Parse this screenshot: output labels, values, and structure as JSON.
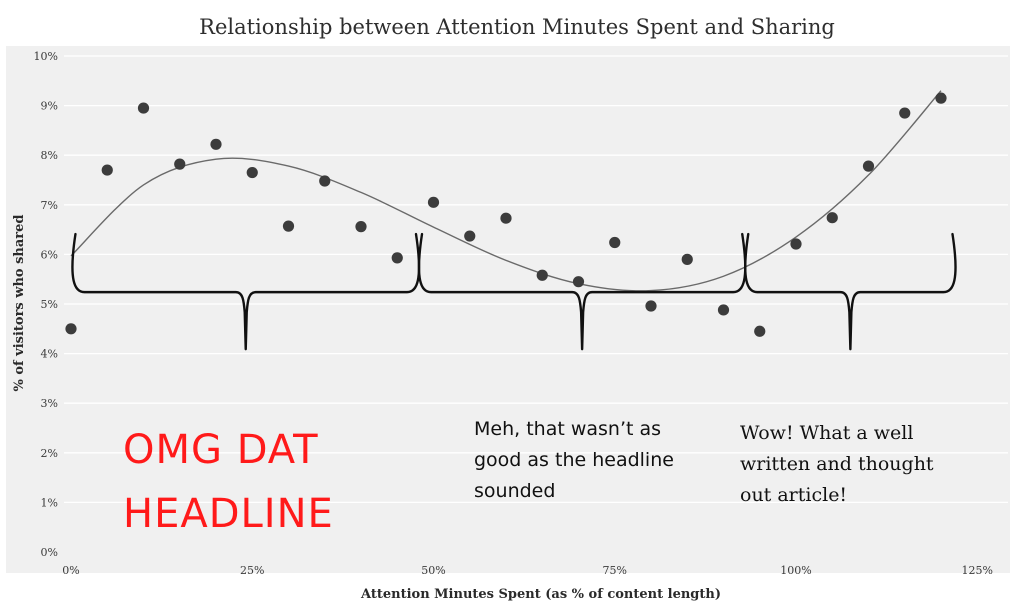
{
  "chart_data": {
    "type": "scatter",
    "title": "Relationship between Attention Minutes Spent and Sharing",
    "xlabel": "Attention Minutes Spent (as % of content length)",
    "ylabel": "% of visitors who shared",
    "xlim": [
      0,
      125
    ],
    "ylim": [
      0,
      10
    ],
    "x_ticks": [
      "0%",
      "25%",
      "50%",
      "75%",
      "100%",
      "125%"
    ],
    "y_ticks": [
      "0%",
      "1%",
      "2%",
      "3%",
      "4%",
      "5%",
      "6%",
      "7%",
      "8%",
      "9%",
      "10%"
    ],
    "grid": "horizontal",
    "points": [
      {
        "x": 0,
        "y": 4.5
      },
      {
        "x": 5,
        "y": 7.7
      },
      {
        "x": 10,
        "y": 8.95
      },
      {
        "x": 15,
        "y": 7.82
      },
      {
        "x": 20,
        "y": 8.22
      },
      {
        "x": 25,
        "y": 7.65
      },
      {
        "x": 30,
        "y": 6.57
      },
      {
        "x": 35,
        "y": 7.48
      },
      {
        "x": 40,
        "y": 6.56
      },
      {
        "x": 45,
        "y": 5.93
      },
      {
        "x": 50,
        "y": 7.05
      },
      {
        "x": 55,
        "y": 6.37
      },
      {
        "x": 60,
        "y": 6.73
      },
      {
        "x": 65,
        "y": 5.58
      },
      {
        "x": 70,
        "y": 5.45
      },
      {
        "x": 75,
        "y": 6.24
      },
      {
        "x": 80,
        "y": 4.96
      },
      {
        "x": 85,
        "y": 5.9
      },
      {
        "x": 90,
        "y": 4.88
      },
      {
        "x": 95,
        "y": 4.45
      },
      {
        "x": 100,
        "y": 6.21
      },
      {
        "x": 105,
        "y": 6.74
      },
      {
        "x": 110,
        "y": 7.78
      },
      {
        "x": 115,
        "y": 8.85
      },
      {
        "x": 120,
        "y": 9.15
      }
    ],
    "trendline": {
      "type": "cubic",
      "points": [
        {
          "x": 0,
          "y": 5.97
        },
        {
          "x": 10,
          "y": 7.4
        },
        {
          "x": 20,
          "y": 7.92
        },
        {
          "x": 30,
          "y": 7.78
        },
        {
          "x": 40,
          "y": 7.25
        },
        {
          "x": 50,
          "y": 6.55
        },
        {
          "x": 60,
          "y": 5.88
        },
        {
          "x": 70,
          "y": 5.41
        },
        {
          "x": 80,
          "y": 5.27
        },
        {
          "x": 90,
          "y": 5.56
        },
        {
          "x": 100,
          "y": 6.35
        },
        {
          "x": 110,
          "y": 7.6
        },
        {
          "x": 120,
          "y": 9.3
        }
      ]
    },
    "brackets": [
      {
        "x_start": 0.2,
        "x_end": 48,
        "y": 5.3
      },
      {
        "x_start": 48,
        "x_end": 93,
        "y": 5.3
      },
      {
        "x_start": 93,
        "x_end": 122,
        "y": 5.3
      }
    ],
    "annotations": {
      "omg": "OMG DAT\nHEADLINE",
      "meh": "Meh, that wasn’t as\ngood as the headline\nsounded",
      "wow": "Wow! What a well\nwritten and thought\nout article!"
    },
    "colors": {
      "plot_background": "#f0f0f0",
      "gridline": "#ffffff",
      "marker": "#3c3c3c",
      "trendline": "#6a6a6a",
      "bracket": "#111111",
      "omg_text": "#ff1a1a"
    }
  }
}
